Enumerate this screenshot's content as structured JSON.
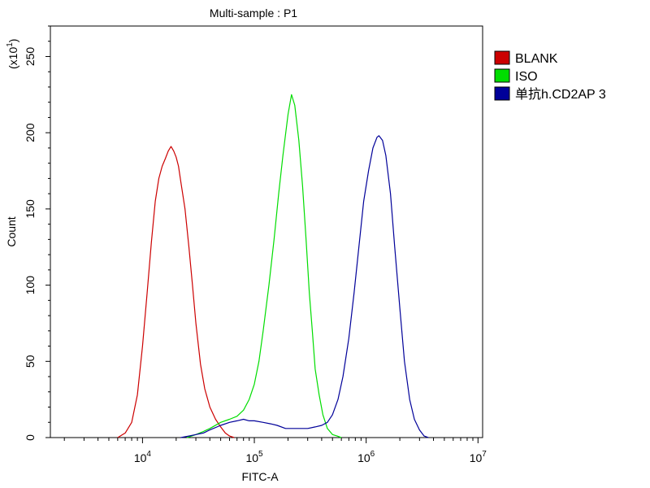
{
  "chart_data": {
    "type": "line",
    "title": "Multi-sample : P1",
    "xlabel": "FITC-A",
    "ylabel": "Count",
    "y_multiplier_label": "(x10",
    "y_multiplier_exp": "1",
    "x_scale": "log",
    "xlim": [
      1500,
      11000000
    ],
    "ylim": [
      0,
      270
    ],
    "y_ticks": [
      0,
      50,
      100,
      150,
      200,
      250
    ],
    "x_major_ticks": [
      {
        "value": 10000,
        "base": "10",
        "exp": "4"
      },
      {
        "value": 100000,
        "base": "10",
        "exp": "5"
      },
      {
        "value": 1000000,
        "base": "10",
        "exp": "6"
      },
      {
        "value": 10000000,
        "base": "10",
        "exp": "7"
      }
    ],
    "grid": false,
    "legend_position": "right",
    "series": [
      {
        "name": "BLANK",
        "color": "#cc0000",
        "x": [
          6000,
          7000,
          8000,
          9000,
          10000,
          11000,
          12000,
          13000,
          14000,
          15000,
          16000,
          17000,
          18000,
          19000,
          20000,
          21000,
          22000,
          24000,
          26000,
          28000,
          30000,
          33000,
          36000,
          40000,
          45000,
          50000,
          55000,
          60000,
          66000
        ],
        "y": [
          0,
          3,
          10,
          28,
          60,
          95,
          128,
          155,
          170,
          178,
          183,
          188,
          191,
          188,
          184,
          178,
          168,
          150,
          125,
          100,
          75,
          48,
          32,
          20,
          12,
          7,
          3,
          1,
          0
        ]
      },
      {
        "name": "ISO",
        "color": "#00dd00",
        "x": [
          25000,
          30000,
          35000,
          40000,
          50000,
          60000,
          70000,
          80000,
          90000,
          100000,
          110000,
          120000,
          135000,
          150000,
          165000,
          180000,
          200000,
          215000,
          230000,
          250000,
          270000,
          290000,
          310000,
          330000,
          350000,
          380000,
          410000,
          450000,
          500000,
          550000,
          600000
        ],
        "y": [
          0,
          2,
          4,
          6,
          10,
          12,
          14,
          18,
          25,
          35,
          50,
          70,
          100,
          130,
          160,
          185,
          212,
          225,
          218,
          195,
          165,
          130,
          95,
          70,
          45,
          28,
          15,
          6,
          2,
          1,
          0
        ]
      },
      {
        "name": "单抗h.CD2AP  3",
        "color": "#000099",
        "x": [
          22000,
          26000,
          30000,
          35000,
          40000,
          50000,
          60000,
          70000,
          80000,
          90000,
          100000,
          120000,
          140000,
          160000,
          190000,
          220000,
          260000,
          300000,
          350000,
          400000,
          450000,
          500000,
          560000,
          620000,
          700000,
          780000,
          860000,
          950000,
          1050000,
          1150000,
          1250000,
          1300000,
          1400000,
          1500000,
          1650000,
          1800000,
          2000000,
          2200000,
          2450000,
          2700000,
          3000000,
          3300000,
          3600000
        ],
        "y": [
          0,
          1,
          2,
          3,
          5,
          8,
          10,
          11,
          12,
          11,
          11,
          10,
          9,
          8,
          6,
          6,
          6,
          6,
          7,
          8,
          10,
          15,
          25,
          40,
          65,
          95,
          125,
          155,
          175,
          190,
          197,
          198,
          195,
          185,
          160,
          125,
          85,
          50,
          25,
          12,
          5,
          1,
          0
        ]
      }
    ]
  }
}
